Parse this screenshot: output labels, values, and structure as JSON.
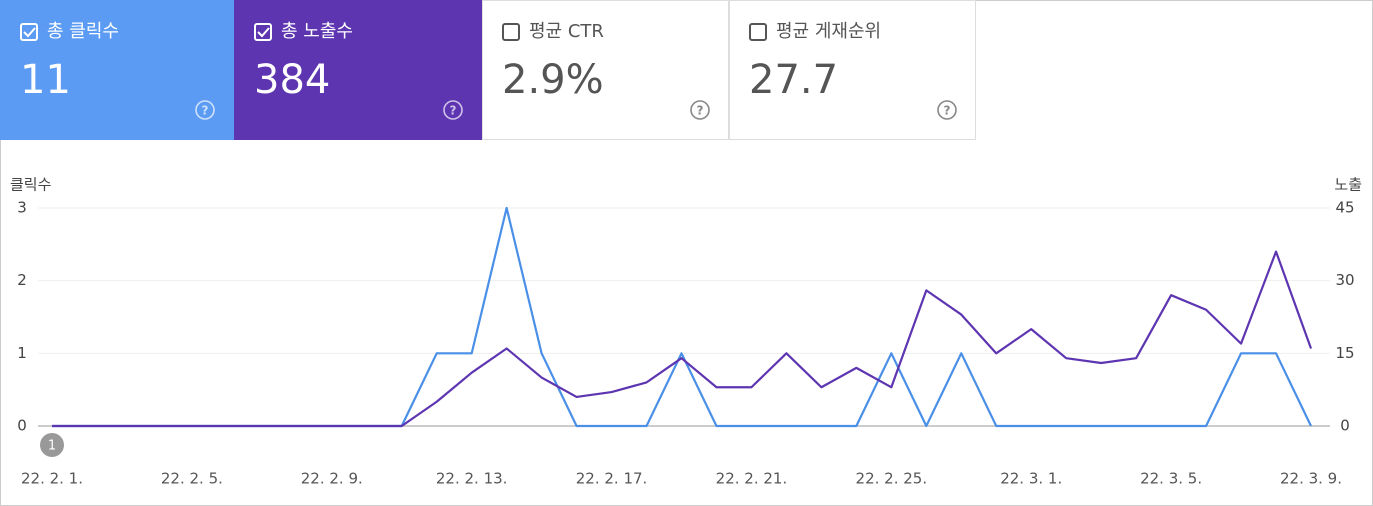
{
  "cards": [
    {
      "label": "총 클릭수",
      "value": "11",
      "checked": true,
      "color": "#5c9bf3"
    },
    {
      "label": "총 노출수",
      "value": "384",
      "checked": true,
      "color": "#5e35b1"
    },
    {
      "label": "평균 CTR",
      "value": "2.9%",
      "checked": false,
      "color": "#ffffff"
    },
    {
      "label": "평균 게재순위",
      "value": "27.7",
      "checked": false,
      "color": "#ffffff"
    }
  ],
  "chart_data": {
    "type": "line",
    "y_label": "클릭수",
    "y2_label": "노출",
    "categories": [
      "22. 2. 1.",
      null,
      null,
      null,
      "22. 2. 5.",
      null,
      null,
      null,
      "22. 2. 9.",
      null,
      null,
      null,
      "22. 2. 13.",
      null,
      null,
      null,
      "22. 2. 17.",
      null,
      null,
      null,
      "22. 2. 21.",
      null,
      null,
      null,
      "22. 2. 25.",
      null,
      null,
      null,
      "22. 3. 1.",
      null,
      null,
      null,
      "22. 3. 5.",
      null,
      null,
      null,
      "22. 3. 9."
    ],
    "series": [
      {
        "name": "클릭수",
        "color": "#4a8fe8",
        "values": [
          0,
          0,
          0,
          0,
          0,
          0,
          0,
          0,
          0,
          0,
          0,
          1,
          1,
          3,
          1,
          0,
          0,
          0,
          1,
          0,
          0,
          0,
          0,
          0,
          1,
          0,
          1,
          0,
          0,
          0,
          0,
          0,
          0,
          0,
          1,
          1,
          0
        ]
      },
      {
        "name": "노출",
        "color": "#5e35b1",
        "axis": "y2",
        "values": [
          0,
          0,
          0,
          0,
          0,
          0,
          0,
          0,
          0,
          0,
          0,
          5,
          11,
          16,
          10,
          6,
          7,
          9,
          14,
          8,
          8,
          15,
          8,
          12,
          8,
          28,
          23,
          15,
          20,
          14,
          13,
          14,
          27,
          24,
          17,
          36,
          16
        ]
      }
    ],
    "ylim": [
      0,
      3
    ],
    "yticks": [
      0,
      1,
      2,
      3
    ],
    "y2lim": [
      0,
      45
    ],
    "y2ticks": [
      0,
      15,
      30,
      45
    ],
    "grid": true,
    "annotation": "1"
  }
}
